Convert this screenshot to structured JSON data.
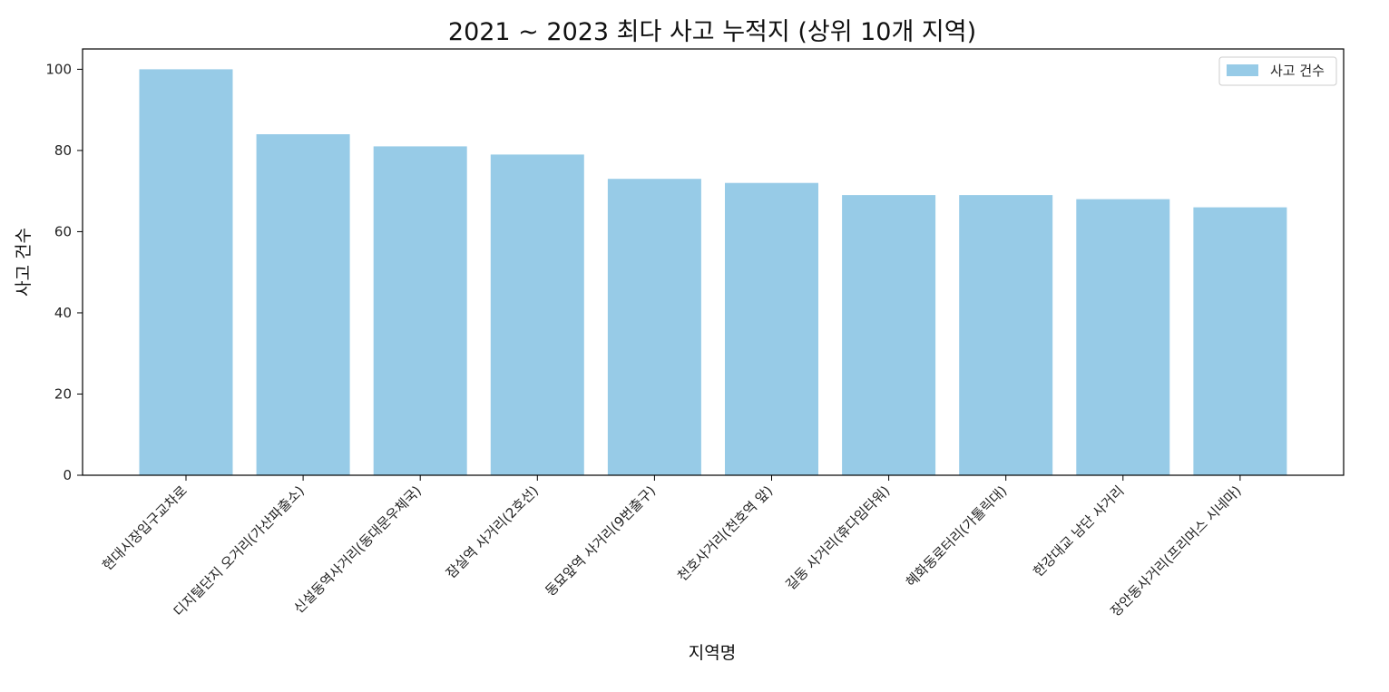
{
  "chart_data": {
    "type": "bar",
    "title": "2021 ~ 2023 최다 사고 누적지 (상위 10개 지역)",
    "xlabel": "지역명",
    "ylabel": "사고 건수",
    "categories": [
      "현대시장입구교차로",
      "디지털단지 오거리(가산파출소)",
      "신설동역사거리(동대문우체국)",
      "잠실역 사거리(2호선)",
      "동묘앞역 사거리(9번출구)",
      "천호사거리(천호역 앞)",
      "길동 사거리(휴다임타워)",
      "혜화동로터리(가톨릭대)",
      "한강대교 남단 사거리",
      "장안동사거리(프리머스 시네마)"
    ],
    "series": [
      {
        "name": "사고 건수",
        "values": [
          100,
          84,
          81,
          79,
          73,
          72,
          69,
          69,
          68,
          66
        ]
      }
    ],
    "ylim": [
      0,
      105
    ],
    "yticks": [
      "0",
      "20",
      "40",
      "60",
      "80",
      "100"
    ],
    "grid": false,
    "legend_position": "top-right",
    "colors": {
      "bar": "#97cbe7",
      "axis": "#000000"
    }
  }
}
